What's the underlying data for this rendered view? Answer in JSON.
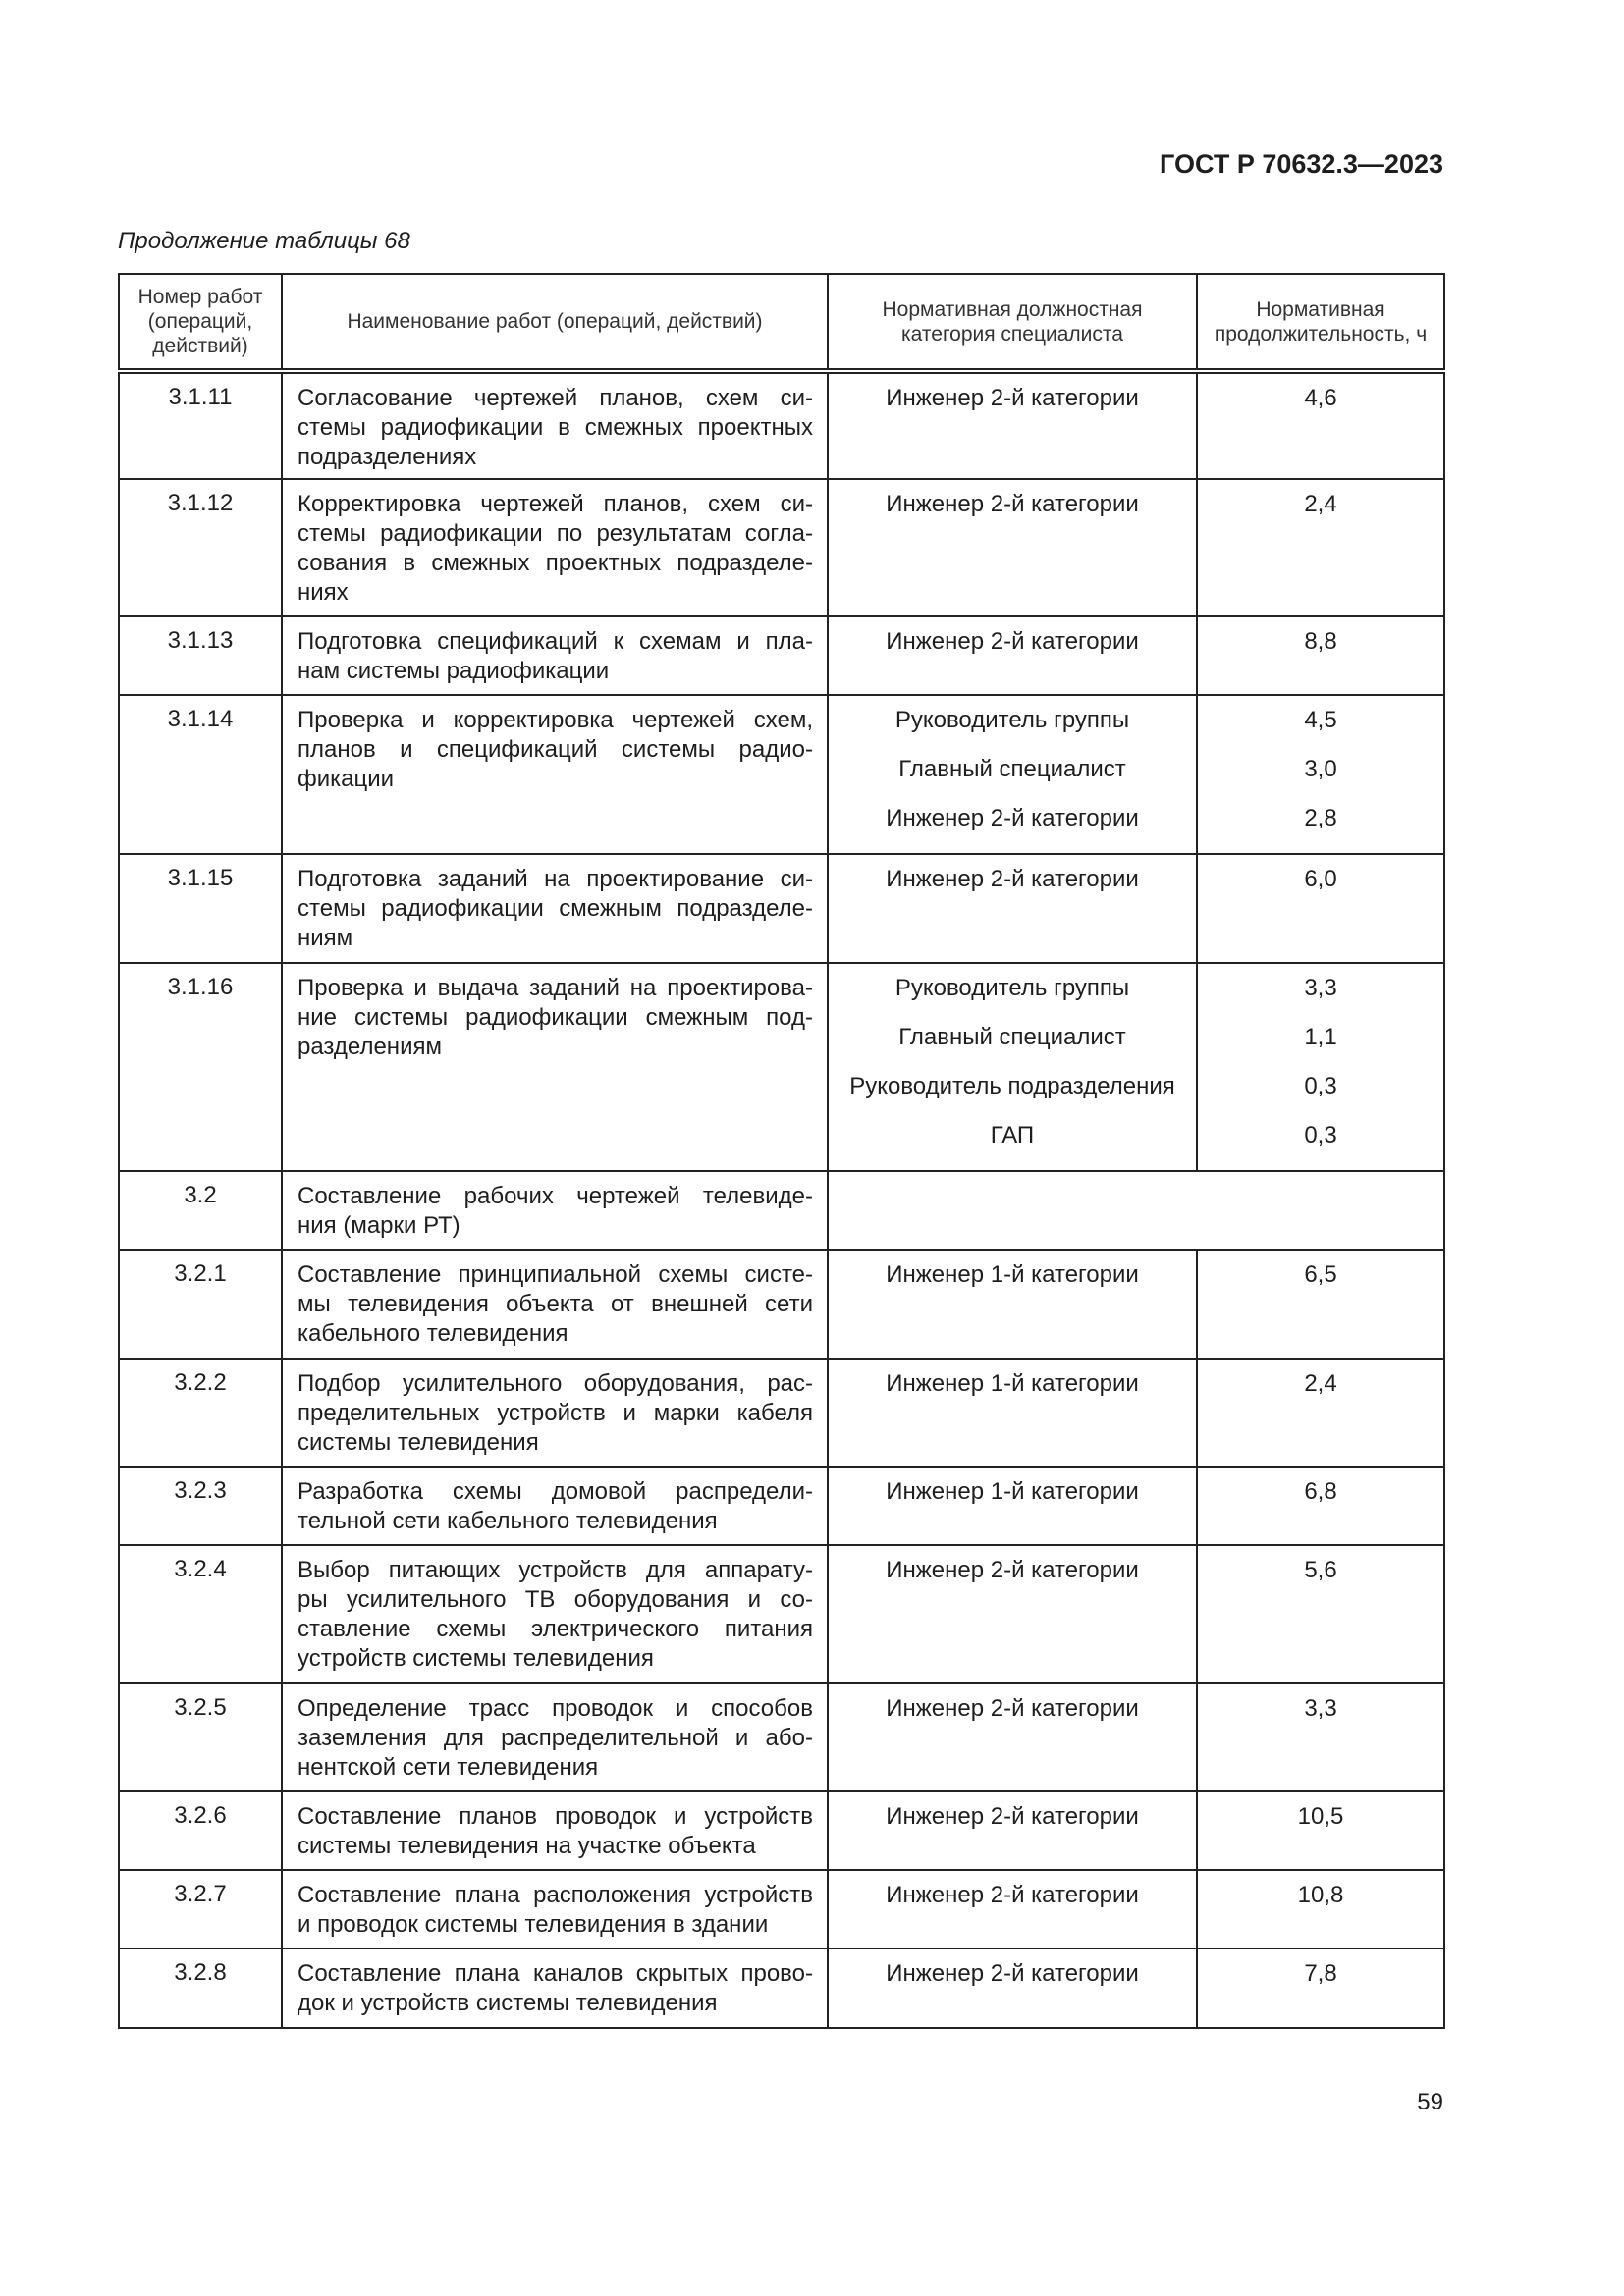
{
  "header": {
    "doc_code": "ГОСТ Р 70632.3—2023",
    "caption": "Продолжение таблицы 68"
  },
  "table": {
    "columns": [
      "Номер работ (операций, действий)",
      "Наименование работ (операций, действий)",
      "Нормативная должностная категория специалиста",
      "Нормативная продолжительность, ч"
    ],
    "rows": [
      {
        "num": "3.1.11",
        "name": [
          "Согласование чертежей планов, схем си-",
          "стемы радиофикации в смежных проектных",
          "подразделениях"
        ],
        "roles": [
          "Инженер 2-й категории"
        ],
        "hours": [
          "4,6"
        ]
      },
      {
        "num": "3.1.12",
        "name": [
          "Корректировка чертежей планов, схем си-",
          "стемы радиофикации по результатам согла-",
          "сования в смежных проектных подразделе-",
          "ниях"
        ],
        "roles": [
          "Инженер 2-й категории"
        ],
        "hours": [
          "2,4"
        ]
      },
      {
        "num": "3.1.13",
        "name": [
          "Подготовка спецификаций к схемам и пла-",
          "нам системы радиофикации"
        ],
        "roles": [
          "Инженер 2-й категории"
        ],
        "hours": [
          "8,8"
        ]
      },
      {
        "num": "3.1.14",
        "name": [
          "Проверка и корректировка чертежей схем,",
          "планов и спецификаций системы радио-",
          "фикации"
        ],
        "roles": [
          "Руководитель группы",
          "Главный специалист",
          "Инженер 2-й категории"
        ],
        "hours": [
          "4,5",
          "3,0",
          "2,8"
        ]
      },
      {
        "num": "3.1.15",
        "name": [
          "Подготовка заданий на проектирование си-",
          "стемы радиофикации смежным подразделе-",
          "ниям"
        ],
        "roles": [
          "Инженер 2-й категории"
        ],
        "hours": [
          "6,0"
        ]
      },
      {
        "num": "3.1.16",
        "name": [
          "Проверка и выдача заданий на проектирова-",
          "ние системы радиофикации смежным под-",
          "разделениям"
        ],
        "roles": [
          "Руководитель группы",
          "Главный специалист",
          "Руководитель подразделения",
          "ГАП"
        ],
        "hours": [
          "3,3",
          "1,1",
          "0,3",
          "0,3"
        ]
      },
      {
        "num": "3.2",
        "name": [
          "Составление рабочих чертежей телевиде-",
          "ния (марки РТ)"
        ],
        "roles": [],
        "hours": []
      },
      {
        "num": "3.2.1",
        "name": [
          "Составление принципиальной схемы систе-",
          "мы телевидения объекта от внешней сети",
          "кабельного телевидения"
        ],
        "roles": [
          "Инженер 1-й категории"
        ],
        "hours": [
          "6,5"
        ]
      },
      {
        "num": "3.2.2",
        "name": [
          "Подбор усилительного оборудования, рас-",
          "пределительных устройств и марки кабеля",
          "системы телевидения"
        ],
        "roles": [
          "Инженер 1-й категории"
        ],
        "hours": [
          "2,4"
        ]
      },
      {
        "num": "3.2.3",
        "name": [
          "Разработка схемы домовой распредели-",
          "тельной сети кабельного телевидения"
        ],
        "roles": [
          "Инженер 1-й категории"
        ],
        "hours": [
          "6,8"
        ]
      },
      {
        "num": "3.2.4",
        "name": [
          "Выбор питающих устройств для аппарату-",
          "ры усилительного ТВ оборудования и со-",
          "ставление схемы электрического питания",
          "устройств системы телевидения"
        ],
        "roles": [
          "Инженер 2-й категории"
        ],
        "hours": [
          "5,6"
        ]
      },
      {
        "num": "3.2.5",
        "name": [
          "Определение трасс проводок и способов",
          "заземления для распределительной и або-",
          "нентской сети телевидения"
        ],
        "roles": [
          "Инженер 2-й категории"
        ],
        "hours": [
          "3,3"
        ]
      },
      {
        "num": "3.2.6",
        "name": [
          "Составление планов проводок и устройств",
          "системы телевидения на участке объекта"
        ],
        "roles": [
          "Инженер 2-й категории"
        ],
        "hours": [
          "10,5"
        ]
      },
      {
        "num": "3.2.7",
        "name": [
          "Составление плана расположения устройств",
          "и проводок системы телевидения в здании"
        ],
        "roles": [
          "Инженер 2-й категории"
        ],
        "hours": [
          "10,8"
        ]
      },
      {
        "num": "3.2.8",
        "name": [
          "Составление плана каналов скрытых прово-",
          "док и устройств системы телевидения"
        ],
        "roles": [
          "Инженер 2-й категории"
        ],
        "hours": [
          "7,8"
        ]
      }
    ]
  },
  "footer": {
    "page_number": "59"
  }
}
